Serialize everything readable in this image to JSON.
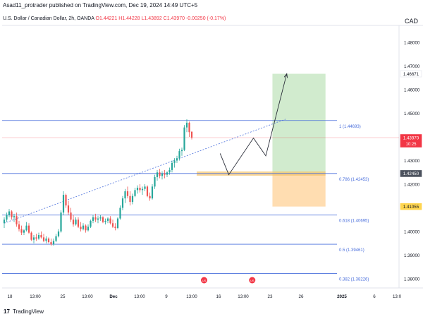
{
  "header": {
    "publisher_line": "Asad11_protrader published on TradingView.com, Dec 19, 2024 14:49 UTC+5",
    "symbol": "U.S. Dollar / Canadian Dollar, 2h, OANDA",
    "ohlc": "O1.44221 H1.44228 L1.43892 C1.43970 -0.00250 (-0.17%)",
    "currency": "CAD"
  },
  "footer": {
    "logo_mark": "17",
    "logo_text": "TradingView"
  },
  "colors": {
    "up": "#26a69a",
    "down": "#ef5350",
    "fib": "#4a6fdc",
    "profit_zone": "#c9e8c6",
    "loss_zone": "#ffd9a8",
    "current_price": "#f23645"
  },
  "chart_data": {
    "type": "candlestick",
    "timeframe": "2h",
    "ylim": [
      1.375,
      1.485
    ],
    "price_ticks": [
      1.48,
      1.47,
      1.46,
      1.45,
      1.44,
      1.43,
      1.42,
      1.41,
      1.4,
      1.39,
      1.38
    ],
    "price_tick_labels": [
      "1.48000",
      "1.47000",
      "1.46000",
      "1.45000",
      "1.44000",
      "1.43000",
      "1.42000",
      "1.41000",
      "1.40000",
      "1.39000",
      "1.38000"
    ],
    "time_labels": [
      "18",
      "13:00",
      "25",
      "13:00",
      "Dec",
      "13:00",
      "9",
      "13:00",
      "16",
      "13:00",
      "23",
      "26",
      "2025",
      "6",
      "13:0"
    ],
    "price_tags": [
      {
        "label": "1.46671",
        "kind": "target"
      },
      {
        "label": "1.43970",
        "sub": "10:25",
        "kind": "last"
      },
      {
        "label": "1.42450",
        "kind": "entry"
      },
      {
        "label": "1.41055",
        "kind": "stop"
      }
    ],
    "fib_levels": [
      {
        "label": "1 (1.44693)",
        "value": 1.44693
      },
      {
        "label": "0.786 (1.42453)",
        "value": 1.42453
      },
      {
        "label": "0.618 (1.40695)",
        "value": 1.40695
      },
      {
        "label": "0.5 (1.39461)",
        "value": 1.39461
      },
      {
        "label": "0.382 (1.38226)",
        "value": 1.38226
      }
    ],
    "position": {
      "entry": 1.4245,
      "target": 1.46671,
      "stop": 1.41055
    },
    "candles": [
      [
        1.4035,
        1.406,
        1.4015,
        1.405
      ],
      [
        1.405,
        1.408,
        1.404,
        1.407
      ],
      [
        1.407,
        1.4095,
        1.406,
        1.4085
      ],
      [
        1.4085,
        1.409,
        1.405,
        1.406
      ],
      [
        1.406,
        1.4075,
        1.404,
        1.4065
      ],
      [
        1.4065,
        1.408,
        1.402,
        1.403
      ],
      [
        1.403,
        1.4045,
        1.4,
        1.401
      ],
      [
        1.401,
        1.4025,
        1.3985,
        1.3995
      ],
      [
        1.3995,
        1.401,
        1.3985,
        1.4005
      ],
      [
        1.4005,
        1.404,
        1.4,
        1.4025
      ],
      [
        1.4025,
        1.4035,
        1.399,
        1.3995
      ],
      [
        1.3995,
        1.4,
        1.396,
        1.3965
      ],
      [
        1.3965,
        1.3985,
        1.395,
        1.3975
      ],
      [
        1.3975,
        1.399,
        1.396,
        1.397
      ],
      [
        1.397,
        1.3995,
        1.3965,
        1.3985
      ],
      [
        1.3985,
        1.4,
        1.397,
        1.3975
      ],
      [
        1.3975,
        1.399,
        1.3955,
        1.396
      ],
      [
        1.396,
        1.398,
        1.395,
        1.397
      ],
      [
        1.397,
        1.3975,
        1.395,
        1.3955
      ],
      [
        1.3955,
        1.397,
        1.394,
        1.3945
      ],
      [
        1.3945,
        1.397,
        1.394,
        1.396
      ],
      [
        1.396,
        1.399,
        1.3955,
        1.398
      ],
      [
        1.398,
        1.401,
        1.3975,
        1.4
      ],
      [
        1.4,
        1.409,
        1.3995,
        1.408
      ],
      [
        1.408,
        1.417,
        1.407,
        1.4155
      ],
      [
        1.4155,
        1.416,
        1.41,
        1.411
      ],
      [
        1.411,
        1.413,
        1.407,
        1.408
      ],
      [
        1.408,
        1.41,
        1.404,
        1.405
      ],
      [
        1.405,
        1.407,
        1.402,
        1.403
      ],
      [
        1.403,
        1.406,
        1.4025,
        1.405
      ],
      [
        1.405,
        1.406,
        1.4015,
        1.402
      ],
      [
        1.402,
        1.404,
        1.4,
        1.401
      ],
      [
        1.401,
        1.4035,
        1.4005,
        1.4025
      ],
      [
        1.4025,
        1.403,
        1.3995,
        1.4005
      ],
      [
        1.4005,
        1.403,
        1.4,
        1.402
      ],
      [
        1.402,
        1.405,
        1.4015,
        1.4045
      ],
      [
        1.4045,
        1.407,
        1.4035,
        1.406
      ],
      [
        1.406,
        1.4075,
        1.404,
        1.405
      ],
      [
        1.405,
        1.4065,
        1.4035,
        1.4055
      ],
      [
        1.4055,
        1.407,
        1.4045,
        1.406
      ],
      [
        1.406,
        1.4065,
        1.4035,
        1.404
      ],
      [
        1.404,
        1.4055,
        1.403,
        1.4045
      ],
      [
        1.4045,
        1.406,
        1.4035,
        1.4055
      ],
      [
        1.4055,
        1.4065,
        1.403,
        1.4035
      ],
      [
        1.4035,
        1.405,
        1.4015,
        1.402
      ],
      [
        1.402,
        1.4035,
        1.4005,
        1.4015
      ],
      [
        1.4015,
        1.406,
        1.401,
        1.4055
      ],
      [
        1.4055,
        1.411,
        1.405,
        1.41
      ],
      [
        1.41,
        1.415,
        1.409,
        1.414
      ],
      [
        1.414,
        1.418,
        1.412,
        1.417
      ],
      [
        1.417,
        1.419,
        1.414,
        1.415
      ],
      [
        1.415,
        1.417,
        1.411,
        1.4125
      ],
      [
        1.4125,
        1.416,
        1.4115,
        1.415
      ],
      [
        1.415,
        1.4185,
        1.4145,
        1.4175
      ],
      [
        1.4175,
        1.4195,
        1.416,
        1.4185
      ],
      [
        1.4185,
        1.42,
        1.4165,
        1.4175
      ],
      [
        1.4175,
        1.419,
        1.4155,
        1.418
      ],
      [
        1.418,
        1.42,
        1.417,
        1.419
      ],
      [
        1.419,
        1.4195,
        1.4145,
        1.415
      ],
      [
        1.415,
        1.4165,
        1.413,
        1.414
      ],
      [
        1.414,
        1.42,
        1.4135,
        1.419
      ],
      [
        1.419,
        1.424,
        1.418,
        1.423
      ],
      [
        1.423,
        1.426,
        1.4215,
        1.425
      ],
      [
        1.425,
        1.4265,
        1.4225,
        1.4235
      ],
      [
        1.4235,
        1.4255,
        1.422,
        1.4245
      ],
      [
        1.4245,
        1.426,
        1.4225,
        1.424
      ],
      [
        1.424,
        1.4255,
        1.423,
        1.425
      ],
      [
        1.425,
        1.427,
        1.424,
        1.426
      ],
      [
        1.426,
        1.43,
        1.425,
        1.429
      ],
      [
        1.429,
        1.431,
        1.427,
        1.43
      ],
      [
        1.43,
        1.432,
        1.429,
        1.431
      ],
      [
        1.431,
        1.435,
        1.43,
        1.434
      ],
      [
        1.434,
        1.4355,
        1.432,
        1.4345
      ],
      [
        1.4345,
        1.445,
        1.434,
        1.444
      ],
      [
        1.444,
        1.4475,
        1.442,
        1.446
      ],
      [
        1.446,
        1.4465,
        1.44,
        1.442
      ],
      [
        1.4422,
        1.4423,
        1.4389,
        1.4397
      ]
    ],
    "projection": [
      {
        "t": 87.5,
        "p": 1.433
      },
      {
        "t": 91.0,
        "p": 1.424
      },
      {
        "t": 101.0,
        "p": 1.4395
      },
      {
        "t": 106.0,
        "p": 1.432
      },
      {
        "t": 114.5,
        "p": 1.4667
      }
    ],
    "trendline": [
      {
        "t": 0,
        "p": 1.4035
      },
      {
        "t": 114.0,
        "p": 1.4475
      }
    ],
    "events": [
      {
        "t": 81.0,
        "label": "US"
      },
      {
        "t": 100.5,
        "label": "US"
      }
    ]
  }
}
